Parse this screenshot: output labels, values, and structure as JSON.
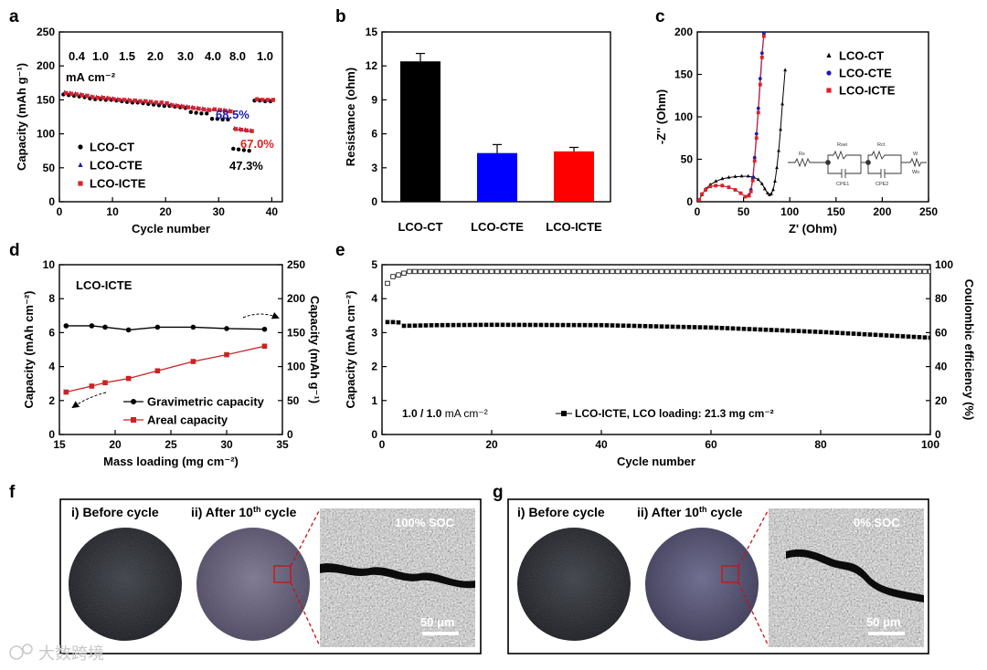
{
  "panel_labels": [
    "a",
    "b",
    "c",
    "d",
    "e",
    "f",
    "g"
  ],
  "chart_data": [
    {
      "id": "a",
      "type": "scatter",
      "xlabel": "Cycle number",
      "ylabel": "Capacity (mAh g⁻¹)",
      "xlim": [
        0,
        42
      ],
      "ylim": [
        0,
        250
      ],
      "xticks": [
        0,
        10,
        20,
        30,
        40
      ],
      "yticks": [
        0,
        50,
        100,
        150,
        200,
        250
      ],
      "rate_labels": [
        "0.4",
        "1.0",
        "1.5",
        "2.0",
        "3.0",
        "4.0",
        "8.0",
        "1.0"
      ],
      "rate_unit": "mA cm⁻²",
      "annotations": [
        {
          "text": "68.5%",
          "color": "#1c1cb4"
        },
        {
          "text": "67.0%",
          "color": "#dd2222"
        },
        {
          "text": "47.3%",
          "color": "#000000"
        }
      ],
      "series": [
        {
          "name": "LCO-CT",
          "marker": "circle",
          "color": "#000000",
          "values": [
            158,
            157,
            156,
            155,
            154,
            152,
            151,
            151,
            150,
            150,
            149,
            148,
            147,
            146,
            146,
            145,
            144,
            143,
            142,
            141,
            141,
            140,
            139,
            138,
            132,
            131,
            130,
            130,
            122,
            122,
            121,
            121,
            78,
            77,
            76,
            75,
            149,
            149,
            148,
            148
          ]
        },
        {
          "name": "LCO-CTE",
          "marker": "triangle",
          "color": "#1c1cb4",
          "values": [
            161,
            160,
            159,
            158,
            156,
            155,
            154,
            154,
            153,
            152,
            151,
            150,
            150,
            149,
            148,
            148,
            147,
            146,
            145,
            144,
            143,
            142,
            141,
            140,
            139,
            138,
            137,
            136,
            136,
            135,
            135,
            134,
            108,
            107,
            106,
            105,
            150,
            150,
            149,
            149
          ]
        },
        {
          "name": "LCO-ICTE",
          "marker": "square",
          "color": "#dd2222",
          "values": [
            160,
            159,
            158,
            157,
            156,
            154,
            153,
            153,
            152,
            151,
            150,
            150,
            149,
            149,
            148,
            148,
            147,
            146,
            146,
            145,
            142,
            141,
            140,
            139,
            138,
            137,
            136,
            135,
            136,
            135,
            134,
            133,
            107,
            106,
            105,
            104,
            151,
            150,
            150,
            150
          ]
        }
      ]
    },
    {
      "id": "b",
      "type": "bar",
      "ylabel": "Resistance (ohm)",
      "ylim": [
        0,
        15
      ],
      "yticks": [
        0,
        3,
        6,
        9,
        12,
        15
      ],
      "categories": [
        "LCO-CT",
        "LCO-CTE",
        "LCO-ICTE"
      ],
      "values": [
        12.4,
        4.3,
        4.45
      ],
      "errors": [
        0.7,
        0.75,
        0.35
      ],
      "colors": [
        "#000000",
        "#0000ff",
        "#ff0000"
      ]
    },
    {
      "id": "c",
      "type": "scatter",
      "xlabel": "Z' (Ohm)",
      "ylabel": "-Z'' (Ohm)",
      "xlim": [
        0,
        250
      ],
      "ylim": [
        0,
        200
      ],
      "xticks": [
        0,
        50,
        100,
        150,
        200,
        250
      ],
      "yticks": [
        0,
        50,
        100,
        150,
        200
      ],
      "inset_circuit_labels": [
        "Rs",
        "Rsei",
        "Rct",
        "W",
        "CPE1",
        "CPE2",
        "Wo"
      ],
      "series": [
        {
          "name": "LCO-CT",
          "marker": "triangle",
          "color": "#000000",
          "x": [
            2,
            5,
            9,
            14,
            20,
            27,
            34,
            41,
            48,
            55,
            61,
            66,
            70,
            73,
            76,
            78,
            80,
            82,
            84,
            86,
            88,
            90,
            92,
            95
          ],
          "y": [
            2,
            8,
            15,
            20,
            24,
            27,
            28.5,
            29.5,
            30,
            30,
            29,
            26,
            21,
            15,
            10,
            8,
            9,
            14,
            24,
            40,
            60,
            85,
            115,
            155
          ]
        },
        {
          "name": "LCO-CTE",
          "marker": "circle",
          "color": "#1c1cb4",
          "x": [
            2,
            5,
            9,
            14,
            20,
            27,
            34,
            41,
            47,
            52,
            56,
            58,
            60,
            62,
            64,
            66,
            68,
            70,
            72
          ],
          "y": [
            2,
            9,
            14,
            18,
            19,
            19,
            17,
            14,
            10,
            6,
            8,
            14,
            28,
            52,
            80,
            110,
            145,
            175,
            198
          ]
        },
        {
          "name": "LCO-ICTE",
          "marker": "square",
          "color": "#dd2222",
          "x": [
            2,
            5,
            9,
            14,
            20,
            27,
            34,
            41,
            47,
            52,
            56,
            58,
            60,
            62,
            64,
            66,
            68,
            70,
            72
          ],
          "y": [
            2,
            9,
            14,
            18,
            19,
            19,
            17,
            14,
            10,
            6,
            7,
            12,
            25,
            48,
            75,
            105,
            138,
            170,
            195
          ]
        }
      ]
    },
    {
      "id": "d",
      "type": "line",
      "label": "LCO-ICTE",
      "xlabel": "Mass loading (mg cm⁻²)",
      "ylabel_left": "Capacity (mAh cm⁻²)",
      "ylabel_right": "Capacity (mAh g⁻¹)",
      "xlim": [
        15,
        35
      ],
      "ylim_left": [
        0,
        10
      ],
      "ylim_right": [
        0,
        250
      ],
      "xticks": [
        15,
        20,
        25,
        30,
        35
      ],
      "yticks_left": [
        0,
        2,
        4,
        6,
        8,
        10
      ],
      "yticks_right": [
        0,
        50,
        100,
        150,
        200,
        250
      ],
      "series": [
        {
          "name": "Gravimetric capacity",
          "axis": "right",
          "marker": "circle",
          "color": "#000000",
          "x": [
            15.6,
            17.9,
            19.1,
            21.2,
            23.8,
            27.0,
            30.0,
            33.4
          ],
          "y": [
            160,
            160,
            158,
            154,
            158,
            158,
            156,
            155
          ]
        },
        {
          "name": "Areal capacity",
          "axis": "left",
          "marker": "square",
          "color": "#cc2222",
          "x": [
            15.6,
            17.9,
            19.1,
            21.2,
            23.8,
            27.0,
            30.0,
            33.4
          ],
          "y": [
            2.5,
            2.85,
            3.05,
            3.3,
            3.75,
            4.3,
            4.7,
            5.2
          ]
        }
      ]
    },
    {
      "id": "e",
      "type": "scatter",
      "xlabel": "Cycle number",
      "ylabel_left": "Capacity (mAh cm⁻²)",
      "ylabel_right": "Coulombic efficiency (%)",
      "xlim": [
        0,
        100
      ],
      "ylim_left": [
        0,
        5
      ],
      "ylim_right": [
        0,
        100
      ],
      "xticks": [
        0,
        20,
        40,
        60,
        80,
        100
      ],
      "yticks_left": [
        0,
        1,
        2,
        3,
        4,
        5
      ],
      "yticks_right": [
        0,
        20,
        40,
        60,
        80,
        100
      ],
      "condition_bold": "1.0 / 1.0",
      "condition_unit": " mA cm⁻²",
      "legend": "LCO-ICTE, LCO loading: 21.3 mg cm⁻²",
      "series": [
        {
          "name": "Capacity",
          "axis": "left",
          "marker": "filled-square",
          "x_start": 1,
          "x_end": 100,
          "keypoints": [
            [
              1,
              3.31
            ],
            [
              2,
              3.31
            ],
            [
              3,
              3.3
            ],
            [
              4,
              3.2
            ],
            [
              10,
              3.22
            ],
            [
              20,
              3.23
            ],
            [
              40,
              3.22
            ],
            [
              60,
              3.15
            ],
            [
              80,
              3.02
            ],
            [
              100,
              2.85
            ]
          ]
        },
        {
          "name": "Coulombic efficiency",
          "axis": "right",
          "marker": "open-square",
          "x_start": 1,
          "x_end": 100,
          "keypoints": [
            [
              1,
              89
            ],
            [
              2,
              93
            ],
            [
              3,
              94
            ],
            [
              4,
              95
            ],
            [
              5,
              96
            ],
            [
              100,
              96
            ]
          ]
        }
      ]
    }
  ],
  "panel_f": {
    "label": "f",
    "before_label": "i) Before cycle",
    "after_label_prefix": "ii) After 10",
    "after_label_sup": "th",
    "after_label_suffix": " cycle",
    "soc": "100% SOC",
    "scale": "50 μm"
  },
  "panel_g": {
    "label": "g",
    "before_label": "i) Before cycle",
    "after_label_prefix": "ii) After 10",
    "after_label_sup": "th",
    "after_label_suffix": " cycle",
    "soc": "0% SOC",
    "scale": "50 μm"
  },
  "watermark": "大数跨境"
}
